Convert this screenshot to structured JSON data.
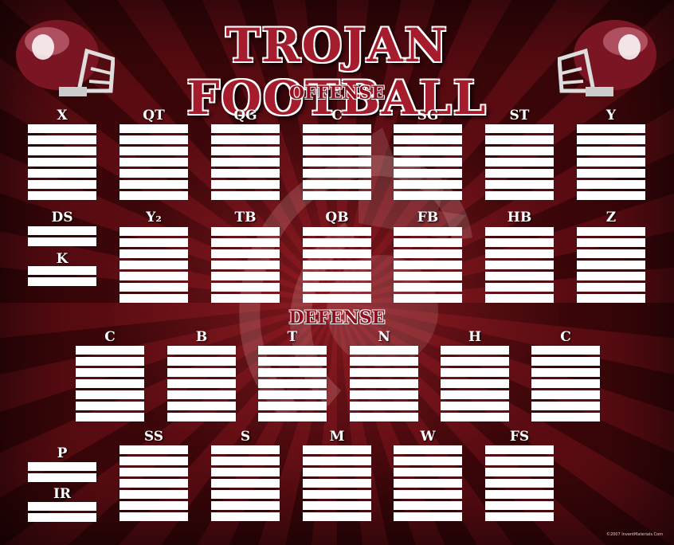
{
  "title": "TROJAN FOOTBALL",
  "sections": {
    "offense": "OFFENSE",
    "defense": "DEFENSE"
  },
  "positions": {
    "X": "X",
    "QT": "QT",
    "QG": "QG",
    "C_off": "C",
    "SG": "SG",
    "ST": "ST",
    "Y": "Y",
    "DS": "DS",
    "K": "K",
    "Y2": "Y₂",
    "TB": "TB",
    "QB": "QB",
    "FB": "FB",
    "HB": "HB",
    "Z": "Z",
    "C_def_left": "C",
    "B": "B",
    "T": "T",
    "N": "N",
    "H": "H",
    "C_def_right": "C",
    "P": "P",
    "IR": "IR",
    "SS": "SS",
    "S": "S",
    "M": "M",
    "W": "W",
    "FS": "FS"
  },
  "colors": {
    "accent": "#a51d2d",
    "line": "#ffffff",
    "background": "#3a0609"
  },
  "icons": {
    "helmet": "football-helmet-icon",
    "emblem": "trojan-head-emblem"
  },
  "copyright": "©2007 InventMaterials.Com"
}
